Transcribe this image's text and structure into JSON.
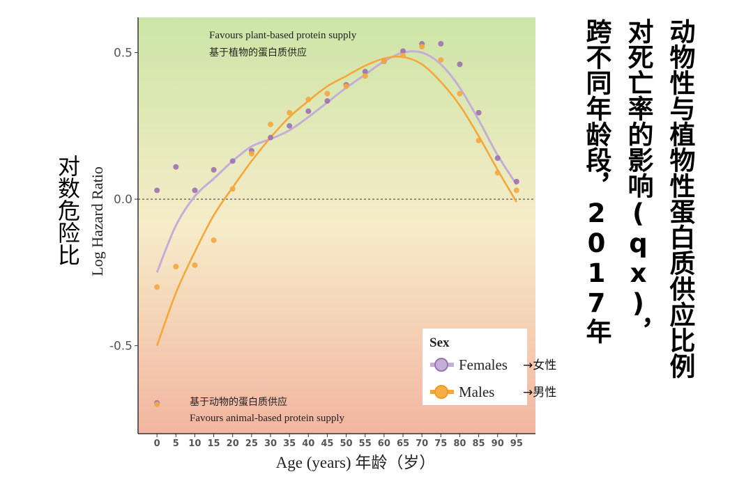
{
  "title_columns": [
    "动物性与植物性蛋白质供应比例",
    "对死亡率的影响(qx)，",
    "跨不同年龄段，2017年"
  ],
  "ylabel_cn": "对数危险比",
  "annotations": {
    "top_en": "Favours plant-based protein supply",
    "top_cn": "基于植物的蛋白质供应",
    "bottom_cn": "基于动物的蛋白质供应",
    "bottom_en": "Favours animal-based protein supply"
  },
  "legend": {
    "title": "Sex",
    "females_label": "Females",
    "males_label": "Males",
    "females_cn": "→女性",
    "males_cn": "→男性"
  },
  "chart_data": {
    "type": "scatter",
    "xlabel": "Age (years) 年龄（岁）",
    "ylabel": "Log Hazard Ratio",
    "x": [
      0,
      5,
      10,
      15,
      20,
      25,
      30,
      35,
      40,
      45,
      50,
      55,
      60,
      65,
      70,
      75,
      80,
      85,
      90,
      95
    ],
    "xlim": [
      -5,
      100
    ],
    "ylim": [
      -0.8,
      0.62
    ],
    "yticks": [
      -0.5,
      0.0,
      0.5
    ],
    "ytick_labels": [
      "-0.5",
      "0.0",
      "0.5"
    ],
    "reference_line": 0.0,
    "series": [
      {
        "name": "Females",
        "color": "#9b72b0",
        "line_color": "#c4aed8",
        "points": [
          0.03,
          0.11,
          0.03,
          0.1,
          0.13,
          0.165,
          0.21,
          0.25,
          0.3,
          0.335,
          0.39,
          0.435,
          0.47,
          0.505,
          0.53,
          0.53,
          0.46,
          0.295,
          0.14,
          0.06
        ],
        "extra_point": [
          0,
          -0.695
        ],
        "curve": [
          [
            0,
            -0.25
          ],
          [
            5,
            -0.09
          ],
          [
            10,
            0.01
          ],
          [
            15,
            0.07
          ],
          [
            20,
            0.13
          ],
          [
            25,
            0.18
          ],
          [
            30,
            0.205
          ],
          [
            35,
            0.235
          ],
          [
            40,
            0.28
          ],
          [
            45,
            0.33
          ],
          [
            50,
            0.38
          ],
          [
            55,
            0.425
          ],
          [
            60,
            0.47
          ],
          [
            65,
            0.5
          ],
          [
            70,
            0.5
          ],
          [
            75,
            0.46
          ],
          [
            80,
            0.38
          ],
          [
            85,
            0.27
          ],
          [
            90,
            0.15
          ],
          [
            95,
            0.05
          ]
        ]
      },
      {
        "name": "Males",
        "color": "#f5a640",
        "line_color": "#f4a73a",
        "points": [
          -0.3,
          -0.23,
          -0.225,
          -0.14,
          0.035,
          0.155,
          0.255,
          0.295,
          0.34,
          0.36,
          0.385,
          0.42,
          0.47,
          0.49,
          0.52,
          0.475,
          0.36,
          0.2,
          0.09,
          0.03
        ],
        "extra_point": [
          0,
          -0.7
        ],
        "curve": [
          [
            0,
            -0.5
          ],
          [
            5,
            -0.32
          ],
          [
            10,
            -0.18
          ],
          [
            15,
            -0.055
          ],
          [
            20,
            0.04
          ],
          [
            25,
            0.13
          ],
          [
            30,
            0.21
          ],
          [
            35,
            0.28
          ],
          [
            40,
            0.335
          ],
          [
            45,
            0.385
          ],
          [
            50,
            0.42
          ],
          [
            55,
            0.455
          ],
          [
            60,
            0.48
          ],
          [
            65,
            0.485
          ],
          [
            70,
            0.46
          ],
          [
            75,
            0.4
          ],
          [
            80,
            0.32
          ],
          [
            85,
            0.215
          ],
          [
            90,
            0.1
          ],
          [
            95,
            -0.01
          ]
        ]
      }
    ],
    "background_gradient": [
      "#cce5a6",
      "#f6ecc9",
      "#f2b5a0"
    ]
  }
}
